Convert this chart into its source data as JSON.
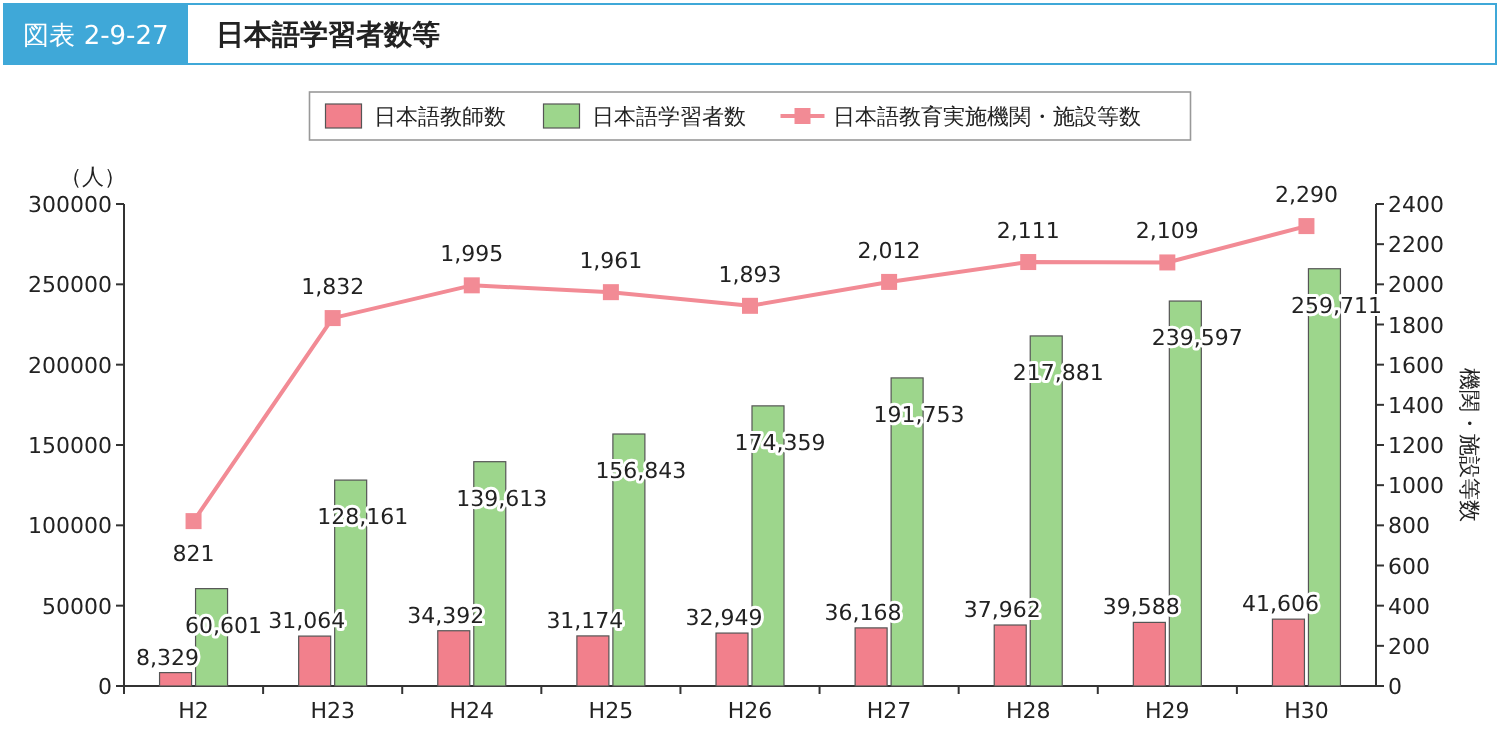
{
  "chart_data": {
    "type": "bar",
    "title": "日本語学習者数等",
    "annotations": [
      "図表 2-9-27"
    ],
    "ylabel": "（人）",
    "y2label": "機関・施設等数",
    "categories": [
      "H2",
      "H23",
      "H24",
      "H25",
      "H26",
      "H27",
      "H28",
      "H29",
      "H30"
    ],
    "series": [
      {
        "name": "日本語教師数",
        "color": "#f2808c",
        "values": [
          8329,
          31064,
          34392,
          31174,
          32949,
          36168,
          37962,
          39588,
          41606
        ],
        "value_labels": [
          "8,329",
          "31,064",
          "34,392",
          "31,174",
          "32,949",
          "36,168",
          "37,962",
          "39,588",
          "41,606"
        ]
      },
      {
        "name": "日本語学習者数",
        "color": "#9dd68c",
        "values": [
          60601,
          128161,
          139613,
          156843,
          174359,
          191753,
          217881,
          239597,
          259711
        ],
        "value_labels": [
          "60,601",
          "128,161",
          "139,613",
          "156,843",
          "174,359",
          "191,753",
          "217,881",
          "239,597",
          "259,711"
        ]
      },
      {
        "name": "日本語教育実施機関・施設等数",
        "type": "line",
        "axis": "y2",
        "color": "#f28b95",
        "marker": "square",
        "values": [
          821,
          1832,
          1995,
          1961,
          1893,
          2012,
          2111,
          2109,
          2290
        ],
        "value_labels": [
          "821",
          "1,832",
          "1,995",
          "1,961",
          "1,893",
          "2,012",
          "2,111",
          "2,109",
          "2,290"
        ]
      }
    ],
    "ylim": [
      0,
      300000
    ],
    "yticks": [
      0,
      50000,
      100000,
      150000,
      200000,
      250000,
      300000
    ],
    "y2lim": [
      0,
      2400
    ],
    "y2ticks": [
      0,
      200,
      400,
      600,
      800,
      1000,
      1200,
      1400,
      1600,
      1800,
      2000,
      2200,
      2400
    ],
    "legend": "top"
  }
}
